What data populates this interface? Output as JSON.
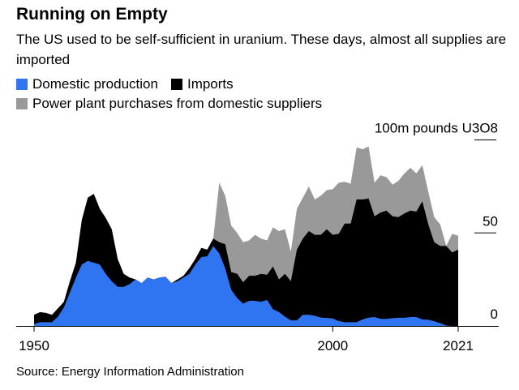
{
  "title": "Running on Empty",
  "subtitle": "The US used to be self-sufficient in uranium. These days, almost all supplies are imported",
  "source": "Source: Energy Information Administration",
  "colors": {
    "domestic": "#2f74f0",
    "imports": "#000000",
    "purchases": "#999999"
  },
  "chart_data": {
    "type": "area",
    "stacked": true,
    "title": "Running on Empty",
    "ylabel": "100m pounds U3O8",
    "ylim": [
      0,
      100
    ],
    "yticks": [
      {
        "v": 0,
        "label": "0"
      },
      {
        "v": 50,
        "label": "50"
      },
      {
        "v": 100,
        "label": "100m pounds U3O8"
      }
    ],
    "xticks": [
      {
        "v": 1950,
        "label": "1950"
      },
      {
        "v": 2000,
        "label": "2000"
      },
      {
        "v": 2021,
        "label": "2021"
      }
    ],
    "xlim": [
      1950,
      2021
    ],
    "x_start": 1950,
    "legend": {
      "placement": "top-left"
    },
    "series": [
      {
        "name": "Domestic production",
        "color": "#2f74f0",
        "values": [
          1,
          2,
          2,
          2,
          5,
          10,
          18,
          26,
          33,
          35,
          34,
          33,
          28,
          24,
          21,
          21,
          22.5,
          25,
          23,
          26,
          25,
          26,
          26.5,
          23,
          24,
          26,
          28,
          33,
          37,
          37.5,
          43,
          39,
          31,
          19.5,
          15,
          12,
          13.5,
          13.5,
          13,
          14,
          9,
          7.5,
          5,
          3,
          3,
          6,
          6,
          5.5,
          4.5,
          4.3,
          4,
          2.6,
          2,
          2,
          2,
          3.5,
          4.5,
          4.8,
          3.8,
          3.8,
          4.2,
          4.4,
          4.4,
          4.8,
          4.8,
          3.5,
          3.3,
          2.5,
          1.5,
          0.2,
          0,
          0
        ]
      },
      {
        "name": "Imports",
        "color": "#000000",
        "values": [
          5,
          5.4,
          5,
          4,
          4.5,
          3,
          6,
          8,
          24,
          34,
          37,
          30,
          30,
          28,
          15,
          7,
          3.5,
          0,
          0,
          0,
          0,
          0,
          0,
          0,
          1,
          1,
          3,
          3,
          5,
          3.5,
          4,
          6,
          13,
          9.5,
          13,
          11.5,
          13.5,
          13.5,
          15,
          13.5,
          23,
          17.5,
          23,
          21,
          38,
          41,
          45,
          43.5,
          44.5,
          47.7,
          45,
          46.9,
          53,
          53,
          66,
          64.5,
          64,
          54.2,
          57.2,
          58.2,
          54.8,
          54.1,
          56.1,
          57.2,
          56.7,
          63.5,
          51.2,
          42.5,
          41.5,
          42.8,
          39.5,
          41
        ]
      },
      {
        "name": "Power plant purchases from domestic suppliers",
        "color": "#999999",
        "values": [
          0,
          0,
          0,
          0,
          0,
          0,
          0,
          0,
          0,
          0,
          0,
          0,
          0,
          0,
          0,
          0,
          0,
          0,
          0,
          0,
          0,
          0,
          0,
          0,
          0,
          0,
          0,
          0,
          0,
          0,
          0,
          32,
          26,
          25,
          22,
          21.5,
          19,
          22,
          19,
          18.5,
          21,
          26,
          24,
          16,
          22,
          22,
          24,
          19,
          21,
          21,
          24.5,
          27.5,
          22.5,
          21.5,
          28,
          27,
          28,
          18,
          20,
          18,
          17,
          19.5,
          21.5,
          23,
          20.5,
          19.5,
          17.5,
          13.5,
          11.5,
          0,
          10,
          7.5
        ]
      }
    ]
  }
}
